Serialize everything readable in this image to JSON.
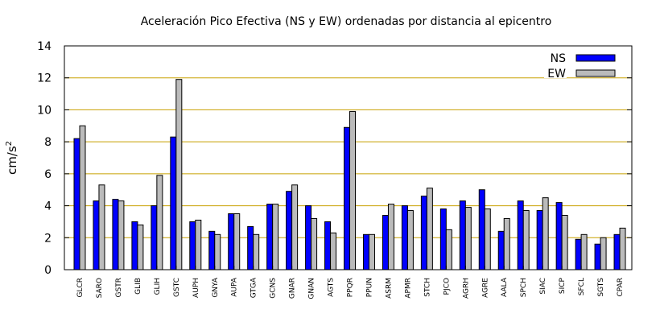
{
  "chart_data": {
    "type": "bar",
    "title": "Aceleración Pico Efectiva (NS y EW) ordenadas por distancia al epicentro",
    "ylabel": "cm/s",
    "ylabel_sup": "2",
    "xlabel": "",
    "ylim": [
      0,
      14
    ],
    "yticks": [
      0,
      2,
      4,
      6,
      8,
      10,
      12,
      14
    ],
    "grid": true,
    "legend_position": "top-right",
    "categories": [
      "GLCR",
      "SARO",
      "GSTR",
      "GLIB",
      "GLIH",
      "GSTC",
      "AUPH",
      "GNYA",
      "AUPA",
      "GTGA",
      "GCNS",
      "GNAR",
      "GNAN",
      "AGTS",
      "PPQR",
      "PPUN",
      "ASRM",
      "APMR",
      "STCH",
      "PJCO",
      "AGRH",
      "AGRE",
      "AALA",
      "SPCH",
      "SIAC",
      "SICP",
      "SFCL",
      "SGTS",
      "CPAR"
    ],
    "series": [
      {
        "name": "NS",
        "color": "#0000ff",
        "values": [
          8.2,
          4.3,
          4.4,
          3.0,
          4.0,
          8.3,
          3.0,
          2.4,
          3.5,
          2.7,
          4.1,
          4.9,
          4.0,
          3.0,
          8.9,
          2.2,
          3.4,
          4.0,
          4.6,
          3.8,
          4.3,
          5.0,
          2.4,
          4.3,
          3.7,
          4.2,
          1.9,
          1.6,
          2.2
        ]
      },
      {
        "name": "EW",
        "color": "#bbbbbb",
        "values": [
          9.0,
          5.3,
          4.3,
          2.8,
          5.9,
          11.9,
          3.1,
          2.2,
          3.5,
          2.2,
          4.1,
          5.3,
          3.2,
          2.3,
          9.9,
          2.2,
          4.1,
          3.7,
          5.1,
          2.5,
          3.9,
          3.8,
          3.2,
          3.7,
          4.5,
          3.4,
          2.2,
          2.0,
          2.6
        ]
      }
    ]
  }
}
